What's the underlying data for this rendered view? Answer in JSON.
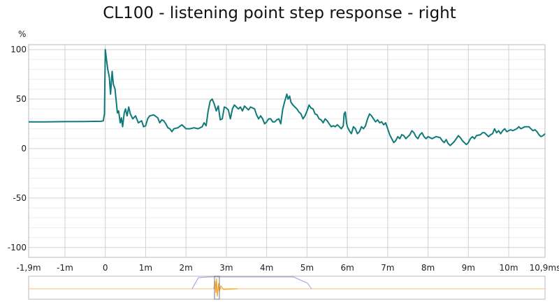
{
  "chart_data": {
    "type": "line",
    "title": "CL100 - listening point step response - right",
    "xlabel": "",
    "ylabel": "%",
    "x_unit": "ms",
    "xlim": [
      -1.9,
      10.9
    ],
    "ylim": [
      -110,
      105
    ],
    "x_ticks": [
      -1.9,
      -1,
      0,
      1,
      2,
      3,
      4,
      5,
      6,
      7,
      8,
      9,
      10,
      10.9
    ],
    "x_tick_labels": [
      "-1,9m",
      "-1m",
      "0",
      "1m",
      "2m",
      "3m",
      "4m",
      "5m",
      "6m",
      "7m",
      "8m",
      "9m",
      "10m",
      "10,9ms"
    ],
    "y_ticks": [
      100,
      50,
      0,
      -50,
      -100
    ],
    "y_tick_labels": [
      "100",
      "50",
      "0",
      "-50",
      "-100"
    ],
    "grid": true,
    "series": [
      {
        "name": "step response",
        "color": "#0f7b78",
        "points": [
          [
            -1.9,
            27
          ],
          [
            -1.5,
            27
          ],
          [
            -1.0,
            27.2
          ],
          [
            -0.5,
            27.3
          ],
          [
            -0.1,
            27.5
          ],
          [
            -0.05,
            28
          ],
          [
            -0.02,
            35
          ],
          [
            0.0,
            100
          ],
          [
            0.03,
            90
          ],
          [
            0.06,
            80
          ],
          [
            0.1,
            72
          ],
          [
            0.13,
            55
          ],
          [
            0.17,
            78
          ],
          [
            0.2,
            65
          ],
          [
            0.24,
            60
          ],
          [
            0.27,
            48
          ],
          [
            0.3,
            36
          ],
          [
            0.33,
            38
          ],
          [
            0.37,
            26
          ],
          [
            0.4,
            31
          ],
          [
            0.43,
            22
          ],
          [
            0.47,
            36
          ],
          [
            0.5,
            40
          ],
          [
            0.54,
            33
          ],
          [
            0.58,
            42
          ],
          [
            0.62,
            35
          ],
          [
            0.68,
            30
          ],
          [
            0.75,
            33
          ],
          [
            0.82,
            26
          ],
          [
            0.9,
            28
          ],
          [
            0.95,
            22
          ],
          [
            1.0,
            23
          ],
          [
            1.05,
            30
          ],
          [
            1.1,
            33
          ],
          [
            1.2,
            34
          ],
          [
            1.3,
            31
          ],
          [
            1.35,
            26
          ],
          [
            1.4,
            29
          ],
          [
            1.45,
            28
          ],
          [
            1.5,
            25
          ],
          [
            1.55,
            21
          ],
          [
            1.6,
            20
          ],
          [
            1.65,
            17
          ],
          [
            1.7,
            20
          ],
          [
            1.8,
            21
          ],
          [
            1.9,
            24
          ],
          [
            2.0,
            20
          ],
          [
            2.1,
            20
          ],
          [
            2.2,
            21
          ],
          [
            2.3,
            20
          ],
          [
            2.4,
            22
          ],
          [
            2.45,
            26
          ],
          [
            2.5,
            23
          ],
          [
            2.55,
            38
          ],
          [
            2.6,
            48
          ],
          [
            2.65,
            50
          ],
          [
            2.7,
            45
          ],
          [
            2.75,
            38
          ],
          [
            2.8,
            43
          ],
          [
            2.85,
            29
          ],
          [
            2.9,
            30
          ],
          [
            2.95,
            42
          ],
          [
            3.0,
            41
          ],
          [
            3.05,
            39
          ],
          [
            3.1,
            30
          ],
          [
            3.15,
            40
          ],
          [
            3.2,
            44
          ],
          [
            3.3,
            40
          ],
          [
            3.35,
            42
          ],
          [
            3.4,
            38
          ],
          [
            3.45,
            43
          ],
          [
            3.5,
            41
          ],
          [
            3.55,
            39
          ],
          [
            3.6,
            42
          ],
          [
            3.7,
            40
          ],
          [
            3.75,
            34
          ],
          [
            3.8,
            30
          ],
          [
            3.85,
            33
          ],
          [
            3.9,
            30
          ],
          [
            3.95,
            25
          ],
          [
            4.0,
            27
          ],
          [
            4.05,
            30
          ],
          [
            4.1,
            30
          ],
          [
            4.15,
            27
          ],
          [
            4.2,
            27
          ],
          [
            4.25,
            29
          ],
          [
            4.3,
            30
          ],
          [
            4.35,
            25
          ],
          [
            4.4,
            40
          ],
          [
            4.45,
            48
          ],
          [
            4.5,
            55
          ],
          [
            4.53,
            50
          ],
          [
            4.57,
            53
          ],
          [
            4.6,
            47
          ],
          [
            4.65,
            44
          ],
          [
            4.7,
            42
          ],
          [
            4.75,
            40
          ],
          [
            4.8,
            37
          ],
          [
            4.85,
            35
          ],
          [
            4.9,
            30
          ],
          [
            4.95,
            33
          ],
          [
            5.0,
            38
          ],
          [
            5.05,
            44
          ],
          [
            5.1,
            41
          ],
          [
            5.15,
            40
          ],
          [
            5.2,
            35
          ],
          [
            5.25,
            34
          ],
          [
            5.3,
            30
          ],
          [
            5.35,
            29
          ],
          [
            5.4,
            26
          ],
          [
            5.45,
            30
          ],
          [
            5.5,
            28
          ],
          [
            5.55,
            25
          ],
          [
            5.6,
            22
          ],
          [
            5.65,
            23
          ],
          [
            5.7,
            22
          ],
          [
            5.75,
            24
          ],
          [
            5.8,
            22
          ],
          [
            5.85,
            20
          ],
          [
            5.9,
            23
          ],
          [
            5.92,
            35
          ],
          [
            5.95,
            37
          ],
          [
            5.98,
            26
          ],
          [
            6.0,
            22
          ],
          [
            6.05,
            18
          ],
          [
            6.1,
            15
          ],
          [
            6.15,
            22
          ],
          [
            6.2,
            20
          ],
          [
            6.25,
            15
          ],
          [
            6.3,
            17
          ],
          [
            6.35,
            22
          ],
          [
            6.4,
            20
          ],
          [
            6.45,
            23
          ],
          [
            6.5,
            30
          ],
          [
            6.55,
            35
          ],
          [
            6.6,
            33
          ],
          [
            6.65,
            30
          ],
          [
            6.7,
            27
          ],
          [
            6.75,
            29
          ],
          [
            6.8,
            26
          ],
          [
            6.85,
            27
          ],
          [
            6.9,
            24
          ],
          [
            6.95,
            26
          ],
          [
            7.0,
            20
          ],
          [
            7.05,
            14
          ],
          [
            7.1,
            10
          ],
          [
            7.15,
            6
          ],
          [
            7.2,
            8
          ],
          [
            7.25,
            12
          ],
          [
            7.3,
            10
          ],
          [
            7.35,
            14
          ],
          [
            7.4,
            13
          ],
          [
            7.45,
            10
          ],
          [
            7.5,
            12
          ],
          [
            7.55,
            14
          ],
          [
            7.6,
            18
          ],
          [
            7.65,
            16
          ],
          [
            7.7,
            12
          ],
          [
            7.75,
            10
          ],
          [
            7.8,
            14
          ],
          [
            7.85,
            16
          ],
          [
            7.9,
            12
          ],
          [
            7.95,
            10
          ],
          [
            8.0,
            12
          ],
          [
            8.1,
            10
          ],
          [
            8.2,
            12
          ],
          [
            8.3,
            11
          ],
          [
            8.35,
            8
          ],
          [
            8.4,
            6
          ],
          [
            8.45,
            9
          ],
          [
            8.5,
            5
          ],
          [
            8.55,
            3
          ],
          [
            8.6,
            5
          ],
          [
            8.65,
            7
          ],
          [
            8.7,
            10
          ],
          [
            8.75,
            13
          ],
          [
            8.8,
            11
          ],
          [
            8.85,
            8
          ],
          [
            8.9,
            6
          ],
          [
            8.95,
            4
          ],
          [
            9.0,
            6
          ],
          [
            9.05,
            10
          ],
          [
            9.1,
            12
          ],
          [
            9.15,
            10
          ],
          [
            9.2,
            13
          ],
          [
            9.3,
            14
          ],
          [
            9.35,
            16
          ],
          [
            9.4,
            16
          ],
          [
            9.45,
            14
          ],
          [
            9.5,
            12
          ],
          [
            9.55,
            14
          ],
          [
            9.6,
            15
          ],
          [
            9.65,
            20
          ],
          [
            9.7,
            16
          ],
          [
            9.75,
            18
          ],
          [
            9.8,
            15
          ],
          [
            9.85,
            18
          ],
          [
            9.9,
            20
          ],
          [
            9.95,
            17
          ],
          [
            10.0,
            18
          ],
          [
            10.05,
            19
          ],
          [
            10.1,
            18
          ],
          [
            10.2,
            20
          ],
          [
            10.25,
            22
          ],
          [
            10.3,
            20
          ],
          [
            10.4,
            22
          ],
          [
            10.5,
            22
          ],
          [
            10.55,
            20
          ],
          [
            10.6,
            18
          ],
          [
            10.65,
            19
          ],
          [
            10.7,
            17
          ],
          [
            10.75,
            14
          ],
          [
            10.8,
            12
          ],
          [
            10.85,
            13
          ],
          [
            10.9,
            15
          ]
        ]
      }
    ],
    "overview": {
      "type": "area",
      "colors": [
        "#f5a623",
        "#8b8bd6"
      ]
    }
  }
}
